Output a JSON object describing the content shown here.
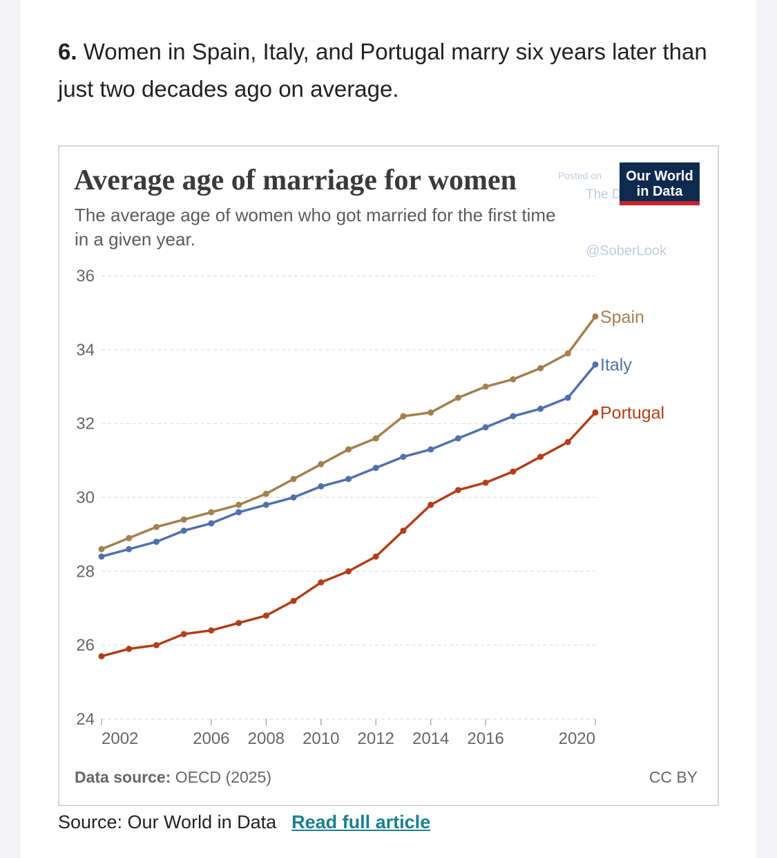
{
  "heading": {
    "number": "6.",
    "text": "Women in Spain, Italy, and Portugal marry six years later than just two decades ago on average."
  },
  "chart_data": {
    "type": "line",
    "title": "Average age of marriage for women",
    "subtitle": "The average age of women who got married for the first time in a given year.",
    "logo": [
      "Our World",
      "in Data"
    ],
    "watermark": [
      "Posted on",
      "The Daily Shot",
      "@SoberLook"
    ],
    "x": [
      2002,
      2003,
      2004,
      2005,
      2006,
      2007,
      2008,
      2009,
      2010,
      2011,
      2012,
      2013,
      2014,
      2015,
      2016,
      2017,
      2018,
      2019,
      2020
    ],
    "xlim": [
      2002,
      2020
    ],
    "xticks": [
      2002,
      2006,
      2008,
      2010,
      2012,
      2014,
      2016,
      2020
    ],
    "ylim": [
      24,
      36
    ],
    "yticks": [
      24,
      26,
      28,
      30,
      32,
      34,
      36
    ],
    "grid": true,
    "series": [
      {
        "name": "Spain",
        "color": "#a3804f",
        "values": [
          28.6,
          28.9,
          29.2,
          29.4,
          29.6,
          29.8,
          30.1,
          30.5,
          30.9,
          31.3,
          31.6,
          32.2,
          32.3,
          32.7,
          33.0,
          33.2,
          33.5,
          33.9,
          34.9
        ]
      },
      {
        "name": "Italy",
        "color": "#5170ab",
        "values": [
          28.4,
          28.6,
          28.8,
          29.1,
          29.3,
          29.6,
          29.8,
          30.0,
          30.3,
          30.5,
          30.8,
          31.1,
          31.3,
          31.6,
          31.9,
          32.2,
          32.4,
          32.7,
          33.6
        ]
      },
      {
        "name": "Portugal",
        "color": "#b03f1a",
        "values": [
          25.7,
          25.9,
          26.0,
          26.3,
          26.4,
          26.6,
          26.8,
          27.2,
          27.7,
          28.0,
          28.4,
          29.1,
          29.8,
          30.2,
          30.4,
          30.7,
          31.1,
          31.5,
          32.3
        ]
      }
    ],
    "source_label": "Data source:",
    "source": "OECD (2025)",
    "license": "CC BY"
  },
  "footer": {
    "source": "Source: Our World in Data",
    "link": "Read full article"
  }
}
